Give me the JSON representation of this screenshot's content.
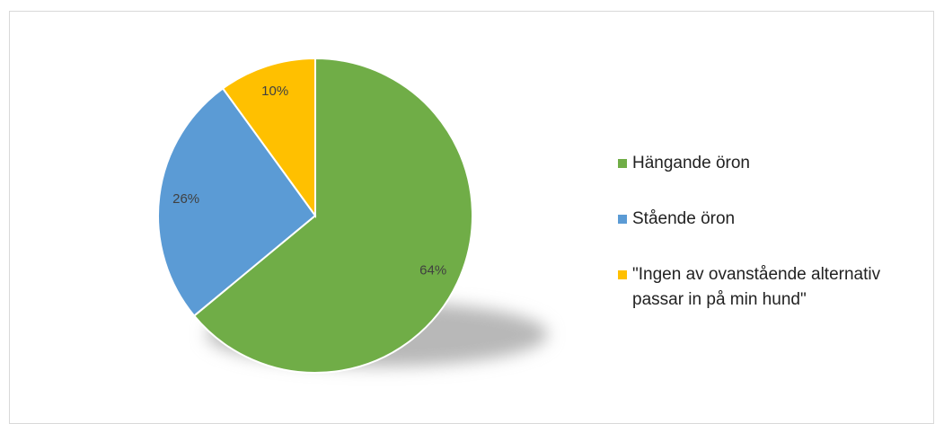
{
  "chart_data": {
    "type": "pie",
    "categories": [
      "Hängande öron",
      "Stående öron",
      "\"Ingen av ovanstående alternativ passar in på min hund\""
    ],
    "values": [
      64,
      26,
      10
    ],
    "value_labels": [
      "64%",
      "26%",
      "10%"
    ],
    "colors": [
      "#70ad47",
      "#5b9bd5",
      "#ffc000"
    ],
    "legend": "right"
  }
}
